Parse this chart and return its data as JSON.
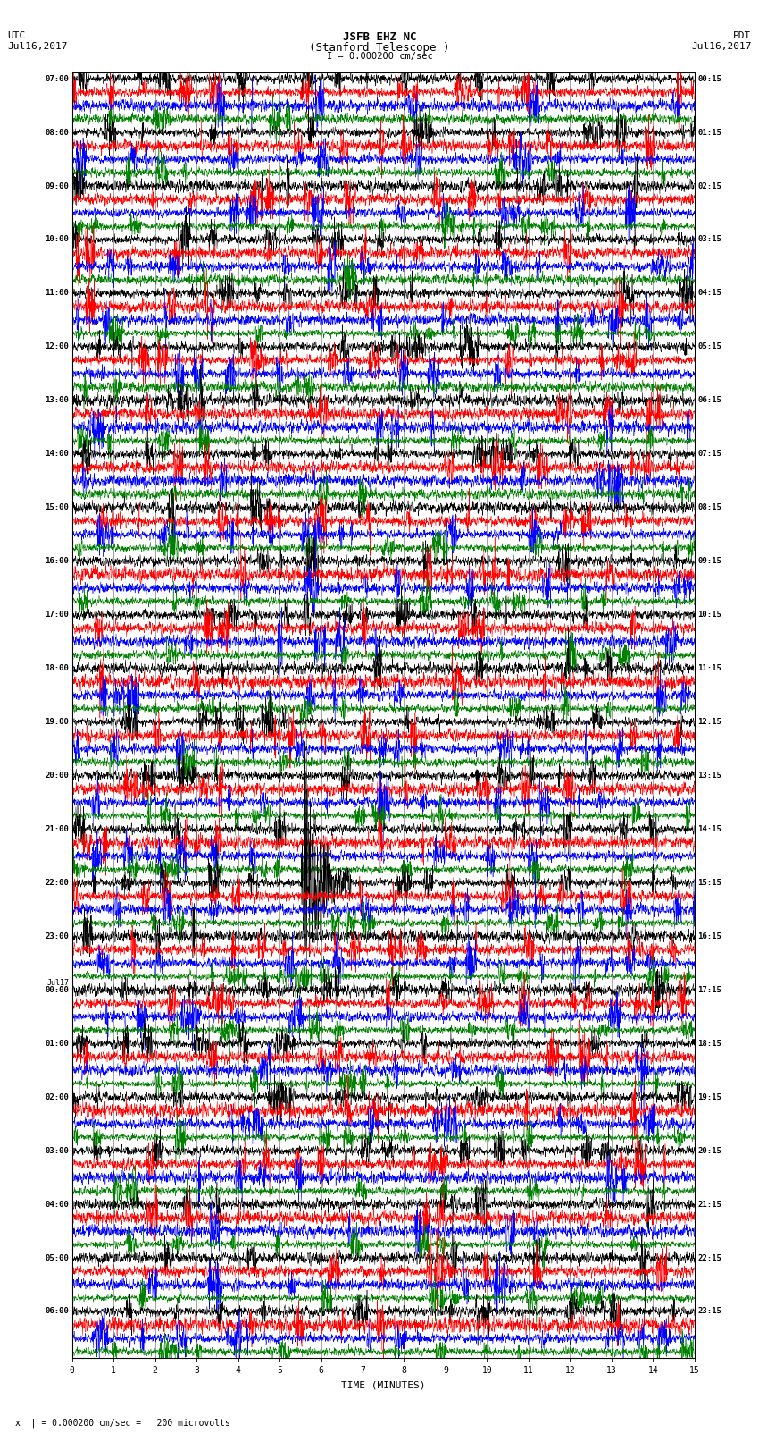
{
  "title_line1": "JSFB EHZ NC",
  "title_line2": "(Stanford Telescope )",
  "scale_label": "I = 0.000200 cm/sec",
  "xlabel": "TIME (MINUTES)",
  "bottom_note": "x  | = 0.000200 cm/sec =   200 microvolts",
  "left_times_utc": [
    "07:00",
    "08:00",
    "09:00",
    "10:00",
    "11:00",
    "12:00",
    "13:00",
    "14:00",
    "15:00",
    "16:00",
    "17:00",
    "18:00",
    "19:00",
    "20:00",
    "21:00",
    "22:00",
    "23:00",
    "Jul17",
    "00:00",
    "01:00",
    "02:00",
    "03:00",
    "04:00",
    "05:00",
    "06:00"
  ],
  "right_times_pdt": [
    "00:15",
    "01:15",
    "02:15",
    "03:15",
    "04:15",
    "05:15",
    "06:15",
    "07:15",
    "08:15",
    "09:15",
    "10:15",
    "11:15",
    "12:15",
    "13:15",
    "14:15",
    "15:15",
    "16:15",
    "17:15",
    "18:15",
    "19:15",
    "20:15",
    "21:15",
    "22:15",
    "23:15"
  ],
  "num_rows": 24,
  "traces_per_row": 4,
  "colors": [
    "black",
    "red",
    "blue",
    "green"
  ],
  "trace_duration_minutes": 15,
  "earthquake_row": 15,
  "earthquake_trace": 0,
  "earthquake_minute": 5.5,
  "earthquake_amplitude": 4.0,
  "fig_width": 8.5,
  "fig_height": 16.13,
  "bg_color": "#ffffff",
  "left_utc_label": "UTC",
  "left_date_label": "Jul16,2017",
  "right_pdt_label": "PDT",
  "right_date_label": "Jul16,2017",
  "jul17_row": 17
}
